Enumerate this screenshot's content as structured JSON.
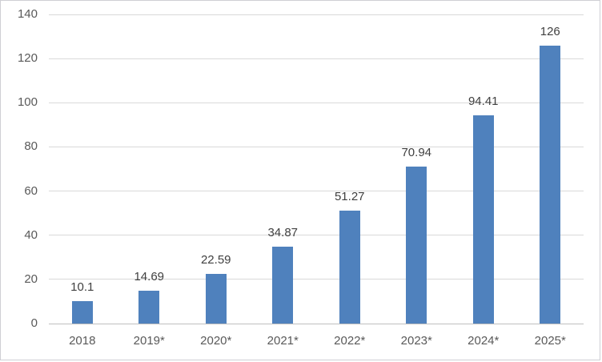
{
  "chart_data": {
    "type": "bar",
    "categories": [
      "2018",
      "2019*",
      "2020*",
      "2021*",
      "2022*",
      "2023*",
      "2024*",
      "2025*"
    ],
    "values": [
      10.1,
      14.69,
      22.59,
      34.87,
      51.27,
      70.94,
      94.41,
      126
    ],
    "data_labels": [
      "10.1",
      "14.69",
      "22.59",
      "34.87",
      "51.27",
      "70.94",
      "94.41",
      "126"
    ],
    "title": "",
    "xlabel": "",
    "ylabel": "",
    "y_ticks": [
      0,
      20,
      40,
      60,
      80,
      100,
      120,
      140
    ],
    "ylim": [
      0,
      140
    ],
    "grid": true,
    "legend": false,
    "colors": {
      "bar_fill": "#4f81bd",
      "gridline": "#d9d9d9",
      "axis_line": "#bfbfbf",
      "tick_label": "#595959",
      "data_label": "#404040",
      "background": "#ffffff",
      "border": "#cfcfd4"
    }
  }
}
